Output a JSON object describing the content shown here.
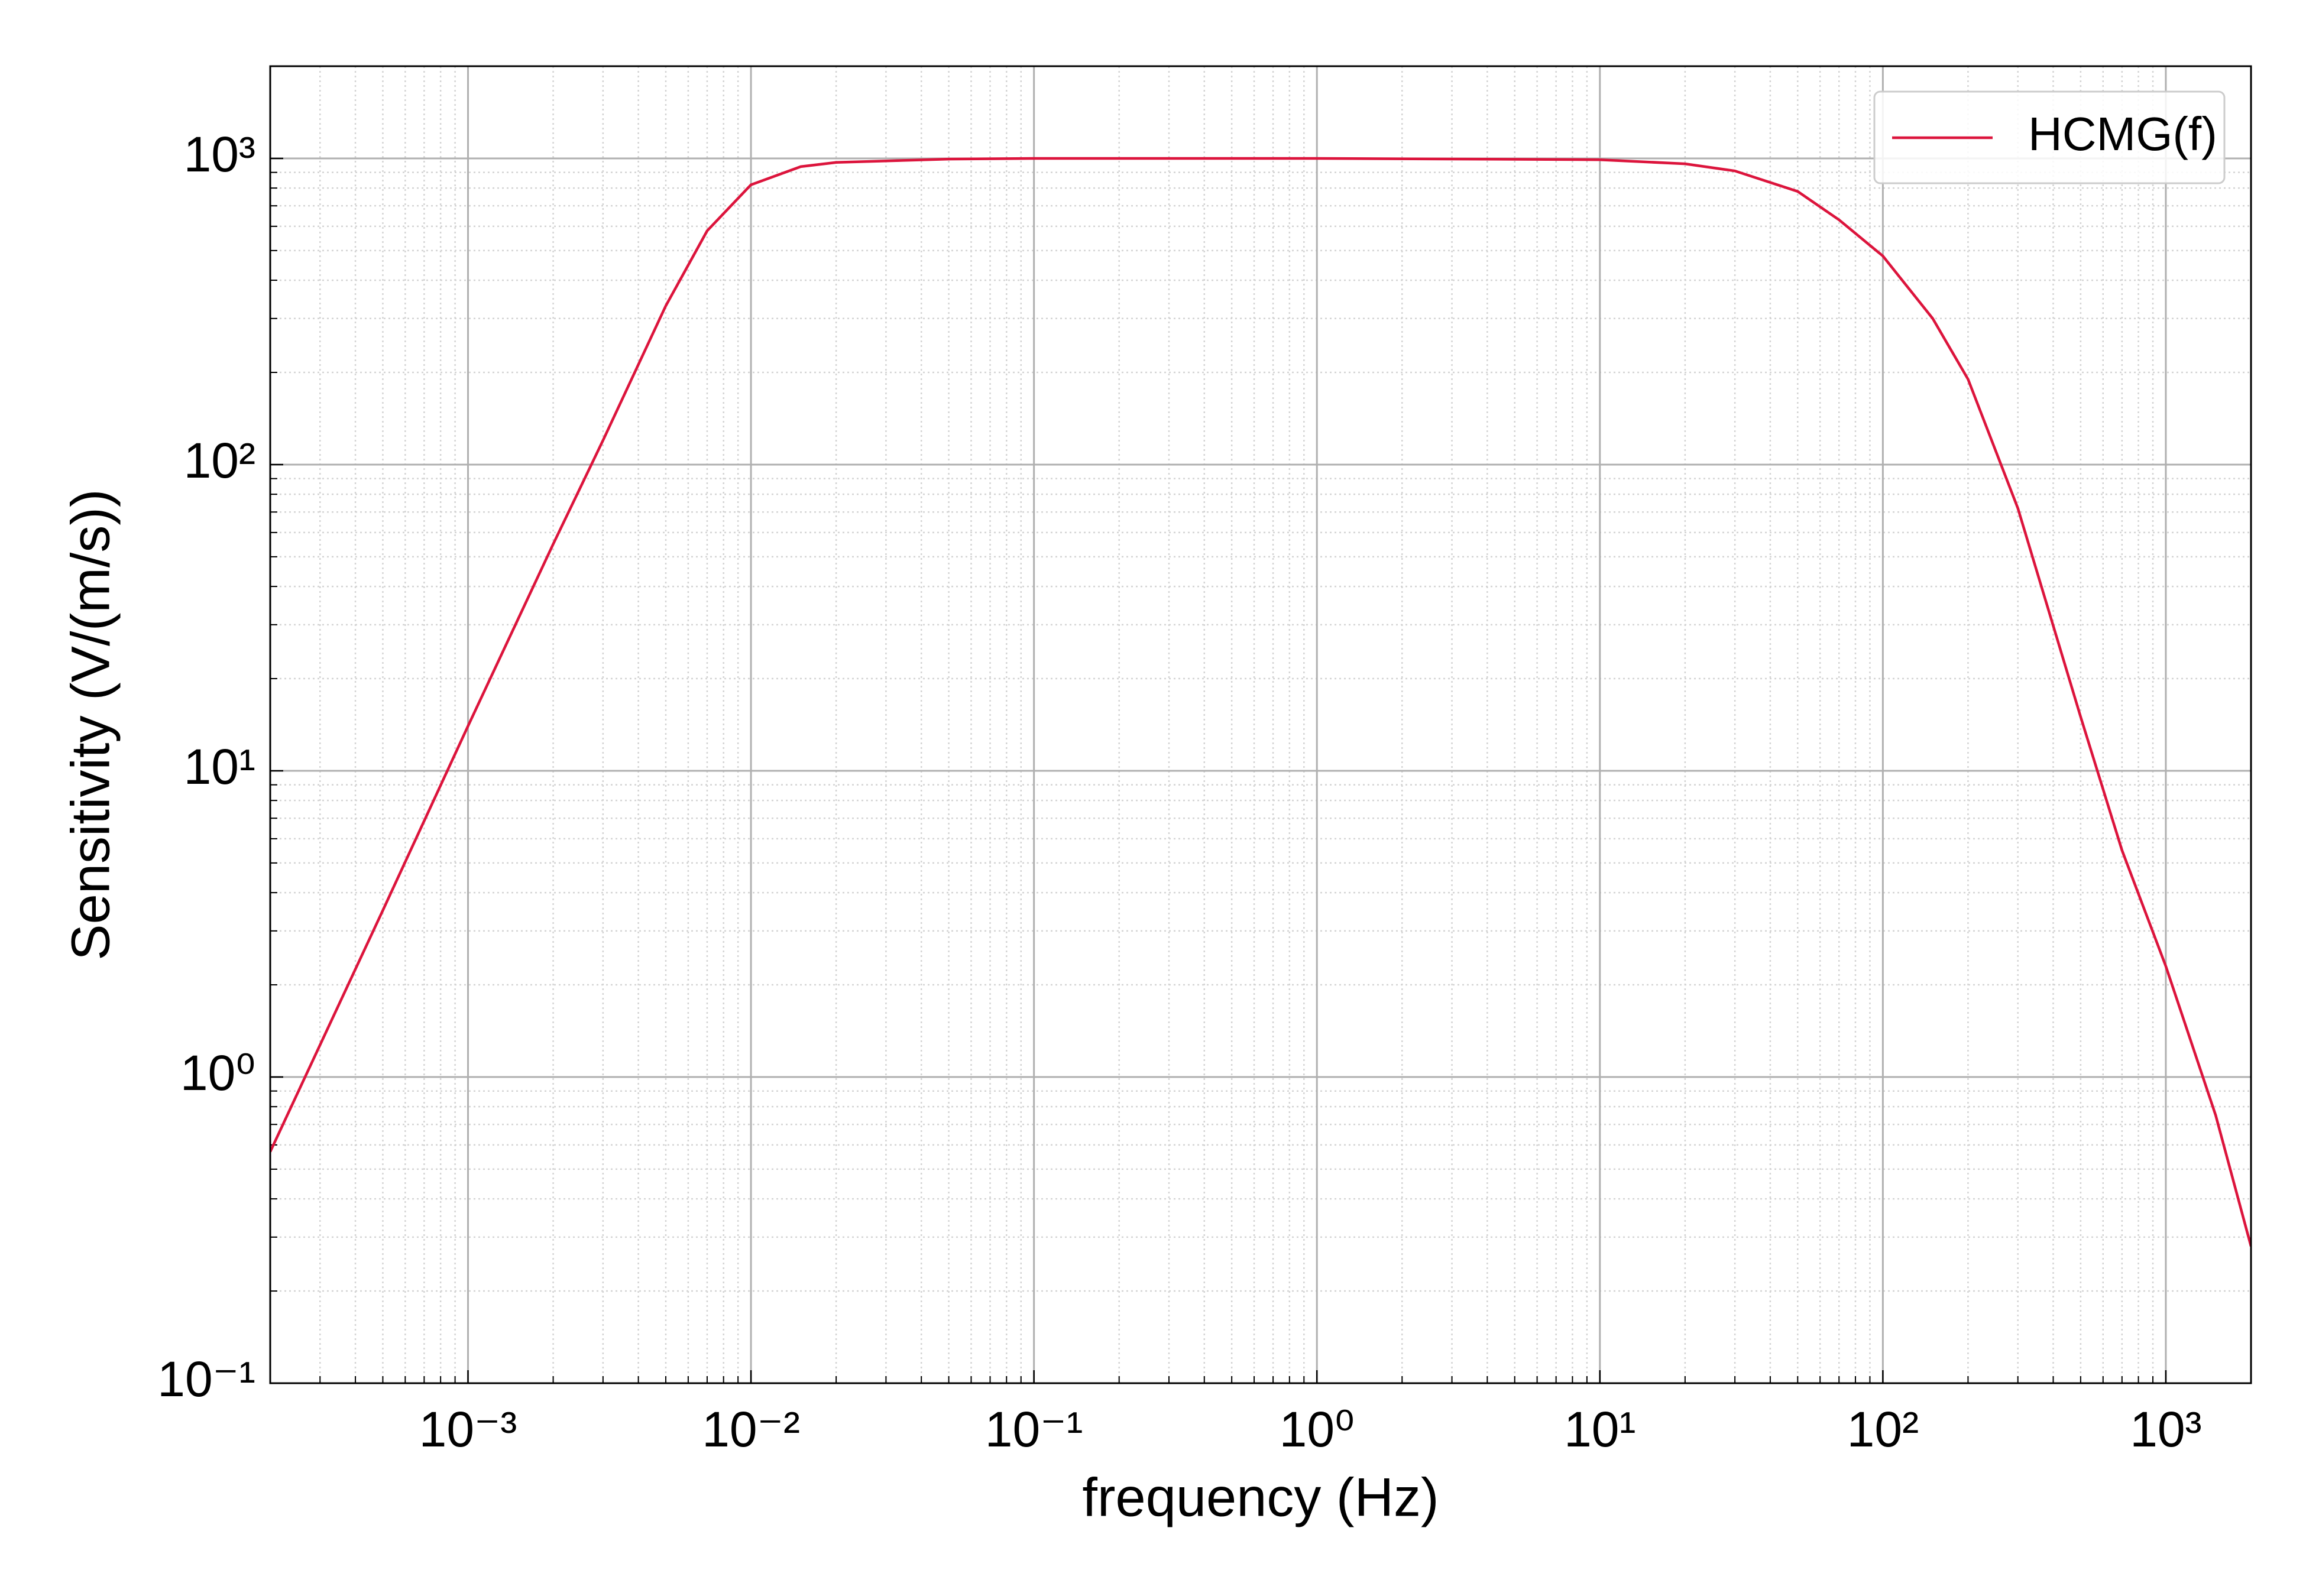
{
  "chart_data": {
    "type": "line",
    "xlabel": "frequency (Hz)",
    "ylabel": "Sensitivity (V/(m/s))",
    "xscale": "log",
    "yscale": "log",
    "xlim": [
      0.0002,
      2000
    ],
    "ylim": [
      0.1,
      2000
    ],
    "xticks": [
      {
        "value": 0.001,
        "label": "10⁻³"
      },
      {
        "value": 0.01,
        "label": "10⁻²"
      },
      {
        "value": 0.1,
        "label": "10⁻¹"
      },
      {
        "value": 1,
        "label": "10⁰"
      },
      {
        "value": 10,
        "label": "10¹"
      },
      {
        "value": 100,
        "label": "10²"
      },
      {
        "value": 1000,
        "label": "10³"
      }
    ],
    "yticks": [
      {
        "value": 0.1,
        "label": "10⁻¹"
      },
      {
        "value": 1,
        "label": "10⁰"
      },
      {
        "value": 10,
        "label": "10¹"
      },
      {
        "value": 100,
        "label": "10²"
      },
      {
        "value": 1000,
        "label": "10³"
      }
    ],
    "grid": true,
    "minor_grid": true,
    "legend": "upper right",
    "x": [
      0.0002,
      0.0005,
      0.001,
      0.002,
      0.003,
      0.005,
      0.007,
      0.01,
      0.015,
      0.02,
      0.05,
      0.1,
      1,
      10,
      20,
      30,
      50,
      70,
      100,
      150,
      200,
      300,
      500,
      700,
      1000,
      1500,
      2000
    ],
    "series": [
      {
        "name": "HCMG(f)",
        "color": "#dc143c",
        "values": [
          0.57,
          3.5,
          14,
          55,
          120,
          330,
          580,
          820,
          940,
          970,
          995,
          1000,
          1000,
          990,
          960,
          910,
          780,
          630,
          480,
          300,
          190,
          72,
          15,
          5.5,
          2.3,
          0.75,
          0.28
        ]
      }
    ]
  }
}
